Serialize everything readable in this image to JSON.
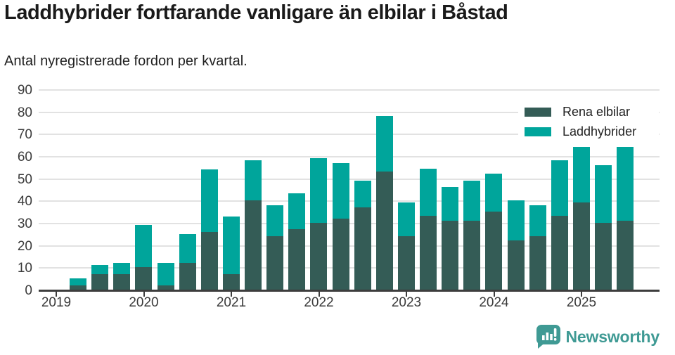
{
  "chart_data": {
    "type": "bar",
    "stacked": true,
    "title": "Laddhybrider fortfarande vanligare än elbilar i Båstad",
    "subtitle": "Antal nyregistrerade fordon per kvartal.",
    "categories": [
      "2019 Q1",
      "2019 Q2",
      "2019 Q3",
      "2019 Q4",
      "2020 Q1",
      "2020 Q2",
      "2020 Q3",
      "2020 Q4",
      "2021 Q1",
      "2021 Q2",
      "2021 Q3",
      "2021 Q4",
      "2022 Q1",
      "2022 Q2",
      "2022 Q3",
      "2022 Q4",
      "2023 Q1",
      "2023 Q2",
      "2023 Q3",
      "2023 Q4",
      "2024 Q1",
      "2024 Q2",
      "2024 Q3",
      "2024 Q4",
      "2025 Q1",
      "2025 Q2",
      "2025 Q3"
    ],
    "series": [
      {
        "name": "Rena elbilar",
        "color": "#345c56",
        "values": [
          0,
          2,
          7,
          7,
          10,
          2,
          12,
          26,
          7,
          40,
          24,
          27,
          30,
          32,
          37,
          53,
          24,
          33,
          31,
          31,
          35,
          22,
          24,
          33,
          39,
          30,
          31
        ]
      },
      {
        "name": "Laddhybrider",
        "color": "#00a59b",
        "values": [
          0,
          3,
          4,
          5,
          19,
          10,
          13,
          28,
          26,
          18,
          14,
          16,
          29,
          25,
          12,
          25,
          15,
          21,
          15,
          18,
          17,
          18,
          14,
          25,
          25,
          26,
          33
        ]
      }
    ],
    "x_tick_labels": [
      "2019",
      "2020",
      "2021",
      "2022",
      "2023",
      "2024",
      "2025"
    ],
    "y_ticks": [
      0,
      10,
      20,
      30,
      40,
      50,
      60,
      70,
      80,
      90
    ],
    "ylim": [
      0,
      90
    ],
    "grid": true,
    "legend_position": "top-right"
  },
  "footer": {
    "brand": "Newsworthy",
    "logo_icon": "bar-chart-speech-bubble-icon",
    "logo_color": "#3f9a94"
  },
  "colors": {
    "background": "#ffffff",
    "title_text": "#1a1a1a",
    "axis_text": "#3a3a3a",
    "axis_line": "#3d3d3d",
    "gridline": "#e2e2e2"
  }
}
